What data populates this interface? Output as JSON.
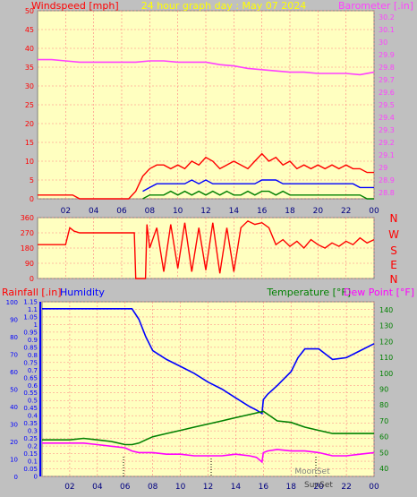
{
  "header": {
    "windspeed_label": "Windspeed [mph]",
    "graph_title": "24 hour graph day : May 07 2024",
    "barometer_label": "Barometer [.in]"
  },
  "direction_panel": {
    "compass": [
      "N",
      "W",
      "S",
      "E",
      "N"
    ]
  },
  "bottom_header": {
    "rainfall_label": "Rainfall [.in]",
    "humidity_label": "Humidity",
    "temperature_label": "Temperature [°F]",
    "dewpoint_label": "Dew Point [°F]"
  },
  "markers": {
    "moonset_label": "MoonSet",
    "sunset_label": "SunSet"
  },
  "colors": {
    "plot_bg": "#ffffc0",
    "frame_bg": "#c0c0c0",
    "wind": "#ff0000",
    "wind_avg": "#0000ff",
    "wind_low": "#008000",
    "barometer": "#ff40ff",
    "humidity": "#0000ff",
    "temperature": "#008000",
    "dewpoint": "#ff00ff",
    "rain": "#0000ff",
    "grid": "#ff8080"
  },
  "chart_data": [
    {
      "type": "line",
      "name": "wind-barometer",
      "x_ticks": [
        "02",
        "04",
        "06",
        "08",
        "10",
        "12",
        "14",
        "16",
        "18",
        "20",
        "22",
        "00"
      ],
      "y_left_ticks": [
        "0",
        "5",
        "10",
        "15",
        "20",
        "25",
        "30",
        "35",
        "40",
        "45",
        "50"
      ],
      "y_left_range": [
        0,
        50
      ],
      "y_right_ticks": [
        "28.8",
        "28.9",
        "29",
        "29.1",
        "29.2",
        "29.3",
        "29.4",
        "29.5",
        "29.6",
        "29.7",
        "29.8",
        "29.9",
        "30",
        "30.1",
        "30.2"
      ],
      "y_right_range": [
        28.75,
        30.25
      ],
      "grid": true,
      "series": [
        {
          "axis": "left",
          "x": [
            0,
            0.5,
            1,
            1.5,
            2,
            2.5,
            3,
            3.5,
            4,
            4.5,
            5,
            5.5,
            6,
            6.5,
            7,
            7.5,
            8,
            8.5,
            9,
            9.5,
            10,
            10.5,
            11,
            11.5,
            12,
            12.5,
            13,
            13.5,
            14,
            14.5,
            15,
            15.5,
            16,
            16.5,
            17,
            17.5,
            18,
            18.5,
            19,
            19.5,
            20,
            20.5,
            21,
            21.5,
            22,
            22.5,
            23,
            23.5,
            24
          ],
          "values": [
            1,
            1,
            1,
            1,
            1,
            1,
            0,
            0,
            0,
            0,
            0,
            0,
            0,
            0,
            2,
            6,
            8,
            9,
            9,
            8,
            9,
            8,
            10,
            9,
            11,
            10,
            8,
            9,
            10,
            9,
            8,
            10,
            12,
            10,
            11,
            9,
            10,
            8,
            9,
            8,
            9,
            8,
            9,
            8,
            9,
            8,
            8,
            7,
            7
          ]
        },
        {
          "axis": "left",
          "x": [
            7.5,
            8,
            8.5,
            9,
            9.5,
            10,
            10.5,
            11,
            11.5,
            12,
            12.5,
            13,
            13.5,
            14,
            14.5,
            15,
            15.5,
            16,
            16.5,
            17,
            17.5,
            18,
            18.5,
            19,
            19.5,
            20,
            20.5,
            21,
            21.5,
            22,
            22.5,
            23,
            23.5,
            24
          ],
          "values": [
            2,
            3,
            4,
            4,
            4,
            4,
            4,
            5,
            4,
            5,
            4,
            4,
            4,
            4,
            4,
            4,
            4,
            5,
            5,
            5,
            4,
            4,
            4,
            4,
            4,
            4,
            4,
            4,
            4,
            4,
            4,
            3,
            3,
            3
          ]
        },
        {
          "axis": "left",
          "x": [
            7.5,
            8,
            8.5,
            9,
            9.5,
            10,
            10.5,
            11,
            11.5,
            12,
            12.5,
            13,
            13.5,
            14,
            14.5,
            15,
            15.5,
            16,
            16.5,
            17,
            17.5,
            18,
            18.5,
            19,
            19.5,
            20,
            20.5,
            21,
            21.5,
            22,
            22.5,
            23,
            23.5,
            24
          ],
          "values": [
            0,
            1,
            1,
            1,
            2,
            1,
            2,
            1,
            2,
            1,
            2,
            1,
            2,
            1,
            1,
            2,
            1,
            2,
            2,
            1,
            2,
            1,
            1,
            1,
            1,
            1,
            1,
            1,
            1,
            1,
            1,
            1,
            0,
            0
          ]
        },
        {
          "axis": "right",
          "x": [
            0,
            1,
            2,
            3,
            4,
            5,
            6,
            7,
            8,
            9,
            10,
            11,
            12,
            13,
            14,
            15,
            16,
            17,
            18,
            19,
            20,
            21,
            22,
            23,
            24
          ],
          "values": [
            29.86,
            29.86,
            29.85,
            29.84,
            29.84,
            29.84,
            29.84,
            29.84,
            29.85,
            29.85,
            29.84,
            29.84,
            29.84,
            29.82,
            29.81,
            29.79,
            29.78,
            29.77,
            29.76,
            29.76,
            29.75,
            29.75,
            29.75,
            29.74,
            29.76
          ]
        }
      ]
    },
    {
      "type": "line",
      "name": "wind-direction",
      "y_ticks": [
        "360",
        "270",
        "180",
        "90",
        "0"
      ],
      "y_range": [
        0,
        360
      ],
      "grid": true,
      "series": [
        {
          "x": [
            0,
            2,
            2.3,
            2.6,
            3,
            5,
            6.9,
            7.0,
            7.7,
            7.8,
            8,
            8.5,
            9,
            9.5,
            10,
            10.5,
            11,
            11.5,
            12,
            12.5,
            13,
            13.5,
            14,
            14.5,
            15,
            15.5,
            16,
            16.5,
            17,
            17.5,
            18,
            18.5,
            19,
            19.5,
            20,
            20.5,
            21,
            21.5,
            22,
            22.5,
            23,
            23.5,
            24
          ],
          "values": [
            200,
            200,
            300,
            280,
            270,
            270,
            270,
            0,
            0,
            320,
            180,
            300,
            40,
            320,
            60,
            330,
            40,
            300,
            50,
            330,
            30,
            300,
            40,
            300,
            340,
            320,
            330,
            300,
            200,
            230,
            190,
            220,
            180,
            230,
            200,
            180,
            210,
            190,
            220,
            200,
            240,
            210,
            230
          ]
        }
      ]
    },
    {
      "type": "line",
      "name": "temperature-humidity",
      "x_ticks": [
        "02",
        "04",
        "06",
        "08",
        "10",
        "12",
        "14",
        "16",
        "18",
        "20",
        "22",
        "00"
      ],
      "y_left_ticks": [
        "0",
        "0.05",
        "0.1",
        "0.15",
        "0.2",
        "0.25",
        "0.3",
        "0.35",
        "0.4",
        "0.45",
        "0.5",
        "0.55",
        "0.6",
        "0.65",
        "0.7",
        "0.75",
        "0.8",
        "0.85",
        "0.9",
        "0.95",
        "1",
        "1.05",
        "1.1",
        "1.15"
      ],
      "y_left_range": [
        0,
        1.15
      ],
      "y_humidity_ticks": [
        "0",
        "10",
        "20",
        "30",
        "40",
        "50",
        "60",
        "70",
        "80",
        "90",
        "100"
      ],
      "y_humidity_range": [
        0,
        100
      ],
      "y_right_ticks": [
        "40",
        "50",
        "60",
        "70",
        "80",
        "90",
        "100",
        "110",
        "120",
        "130",
        "140"
      ],
      "y_right_range": [
        35,
        145
      ],
      "grid": true,
      "series": [
        {
          "axis": "humidity",
          "x": [
            0,
            1,
            2,
            3,
            4,
            5,
            6,
            6.5,
            7,
            7.5,
            8,
            9,
            10,
            11,
            12,
            13,
            14,
            15,
            15.5,
            15.9,
            16,
            16.3,
            17,
            18,
            18.5,
            19,
            20,
            20.5,
            21,
            22,
            23,
            24
          ],
          "values": [
            96,
            96,
            96,
            96,
            96,
            96,
            96,
            96,
            90,
            80,
            72,
            67,
            63,
            59,
            54,
            50,
            45,
            40,
            38,
            36,
            44,
            47,
            52,
            60,
            68,
            73,
            73,
            70,
            67,
            68,
            72,
            76
          ]
        },
        {
          "axis": "right",
          "x": [
            0,
            1,
            2,
            3,
            4,
            5,
            6,
            6.5,
            7,
            7.5,
            8,
            9,
            10,
            11,
            12,
            13,
            14,
            15,
            15.5,
            16,
            16.5,
            17,
            18,
            19,
            20,
            21,
            22,
            23,
            24
          ],
          "values": [
            58,
            58,
            58,
            59,
            58,
            57,
            55,
            55,
            56,
            58,
            60,
            62,
            64,
            66,
            68,
            70,
            72,
            74,
            75,
            76,
            73,
            70,
            69,
            66,
            64,
            62,
            62,
            62,
            62
          ]
        },
        {
          "axis": "right",
          "x": [
            0,
            1,
            2,
            3,
            4,
            5,
            6,
            6.5,
            7,
            7.5,
            8,
            9,
            10,
            11,
            12,
            13,
            14,
            15,
            15.5,
            15.9,
            16,
            16.3,
            17,
            18,
            19,
            20,
            21,
            22,
            23,
            24
          ],
          "values": [
            56,
            56,
            56,
            56,
            55,
            54,
            53,
            51,
            50,
            50,
            50,
            49,
            49,
            48,
            48,
            48,
            49,
            48,
            47,
            44,
            50,
            51,
            52,
            51,
            51,
            50,
            48,
            48,
            49,
            50
          ]
        }
      ]
    }
  ]
}
